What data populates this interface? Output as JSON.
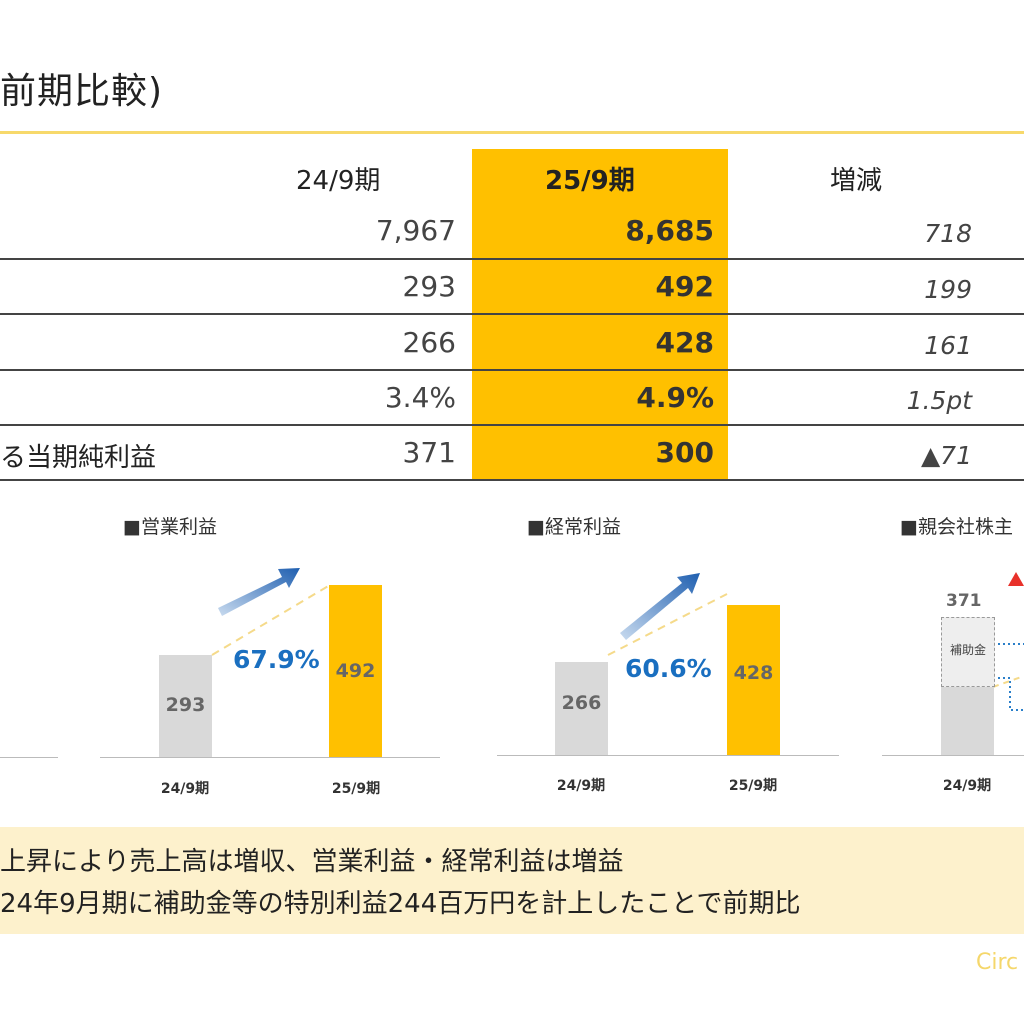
{
  "title": "前期比較)",
  "table": {
    "headers": [
      "24/9期",
      "25/9期",
      "増減"
    ],
    "rows": [
      {
        "label": "",
        "prev": "7,967",
        "cur": "8,685",
        "chg": "718"
      },
      {
        "label": "",
        "prev": "293",
        "cur": "492",
        "chg": "199"
      },
      {
        "label": "",
        "prev": "266",
        "cur": "428",
        "chg": "161"
      },
      {
        "label": "",
        "prev": "3.4%",
        "cur": "4.9%",
        "chg": "1.5pt"
      },
      {
        "label": "る当期純利益",
        "prev": "371",
        "cur": "300",
        "chg": "▲71"
      }
    ]
  },
  "colors": {
    "highlight": "#ffc000",
    "grey_bar": "#d9d9d9",
    "growth_text": "#1a6fc0",
    "rule": "#f7d96b",
    "note_bg": "#fdf1cc"
  },
  "chart_data": [
    {
      "type": "bar",
      "title": "■営業利益",
      "categories": [
        "24/9期",
        "25/9期"
      ],
      "values": [
        293,
        492
      ],
      "value_labels": [
        "293",
        "492"
      ],
      "annotation": "67.9%"
    },
    {
      "type": "bar",
      "title": "■経常利益",
      "categories": [
        "24/9期",
        "25/9期"
      ],
      "values": [
        266,
        428
      ],
      "value_labels": [
        "266",
        "428"
      ],
      "annotation": "60.6%"
    },
    {
      "type": "bar",
      "title": "■親会社株主",
      "categories": [
        "24/9期"
      ],
      "values": [
        371
      ],
      "value_labels": [
        "371"
      ],
      "segment_label": "補助金"
    }
  ],
  "notes": [
    "上昇により売上高は増収、営業利益・経常利益は増益",
    "24年9月期に補助金等の特別利益244百万円を計上したことで前期比"
  ],
  "footer": "Circ"
}
